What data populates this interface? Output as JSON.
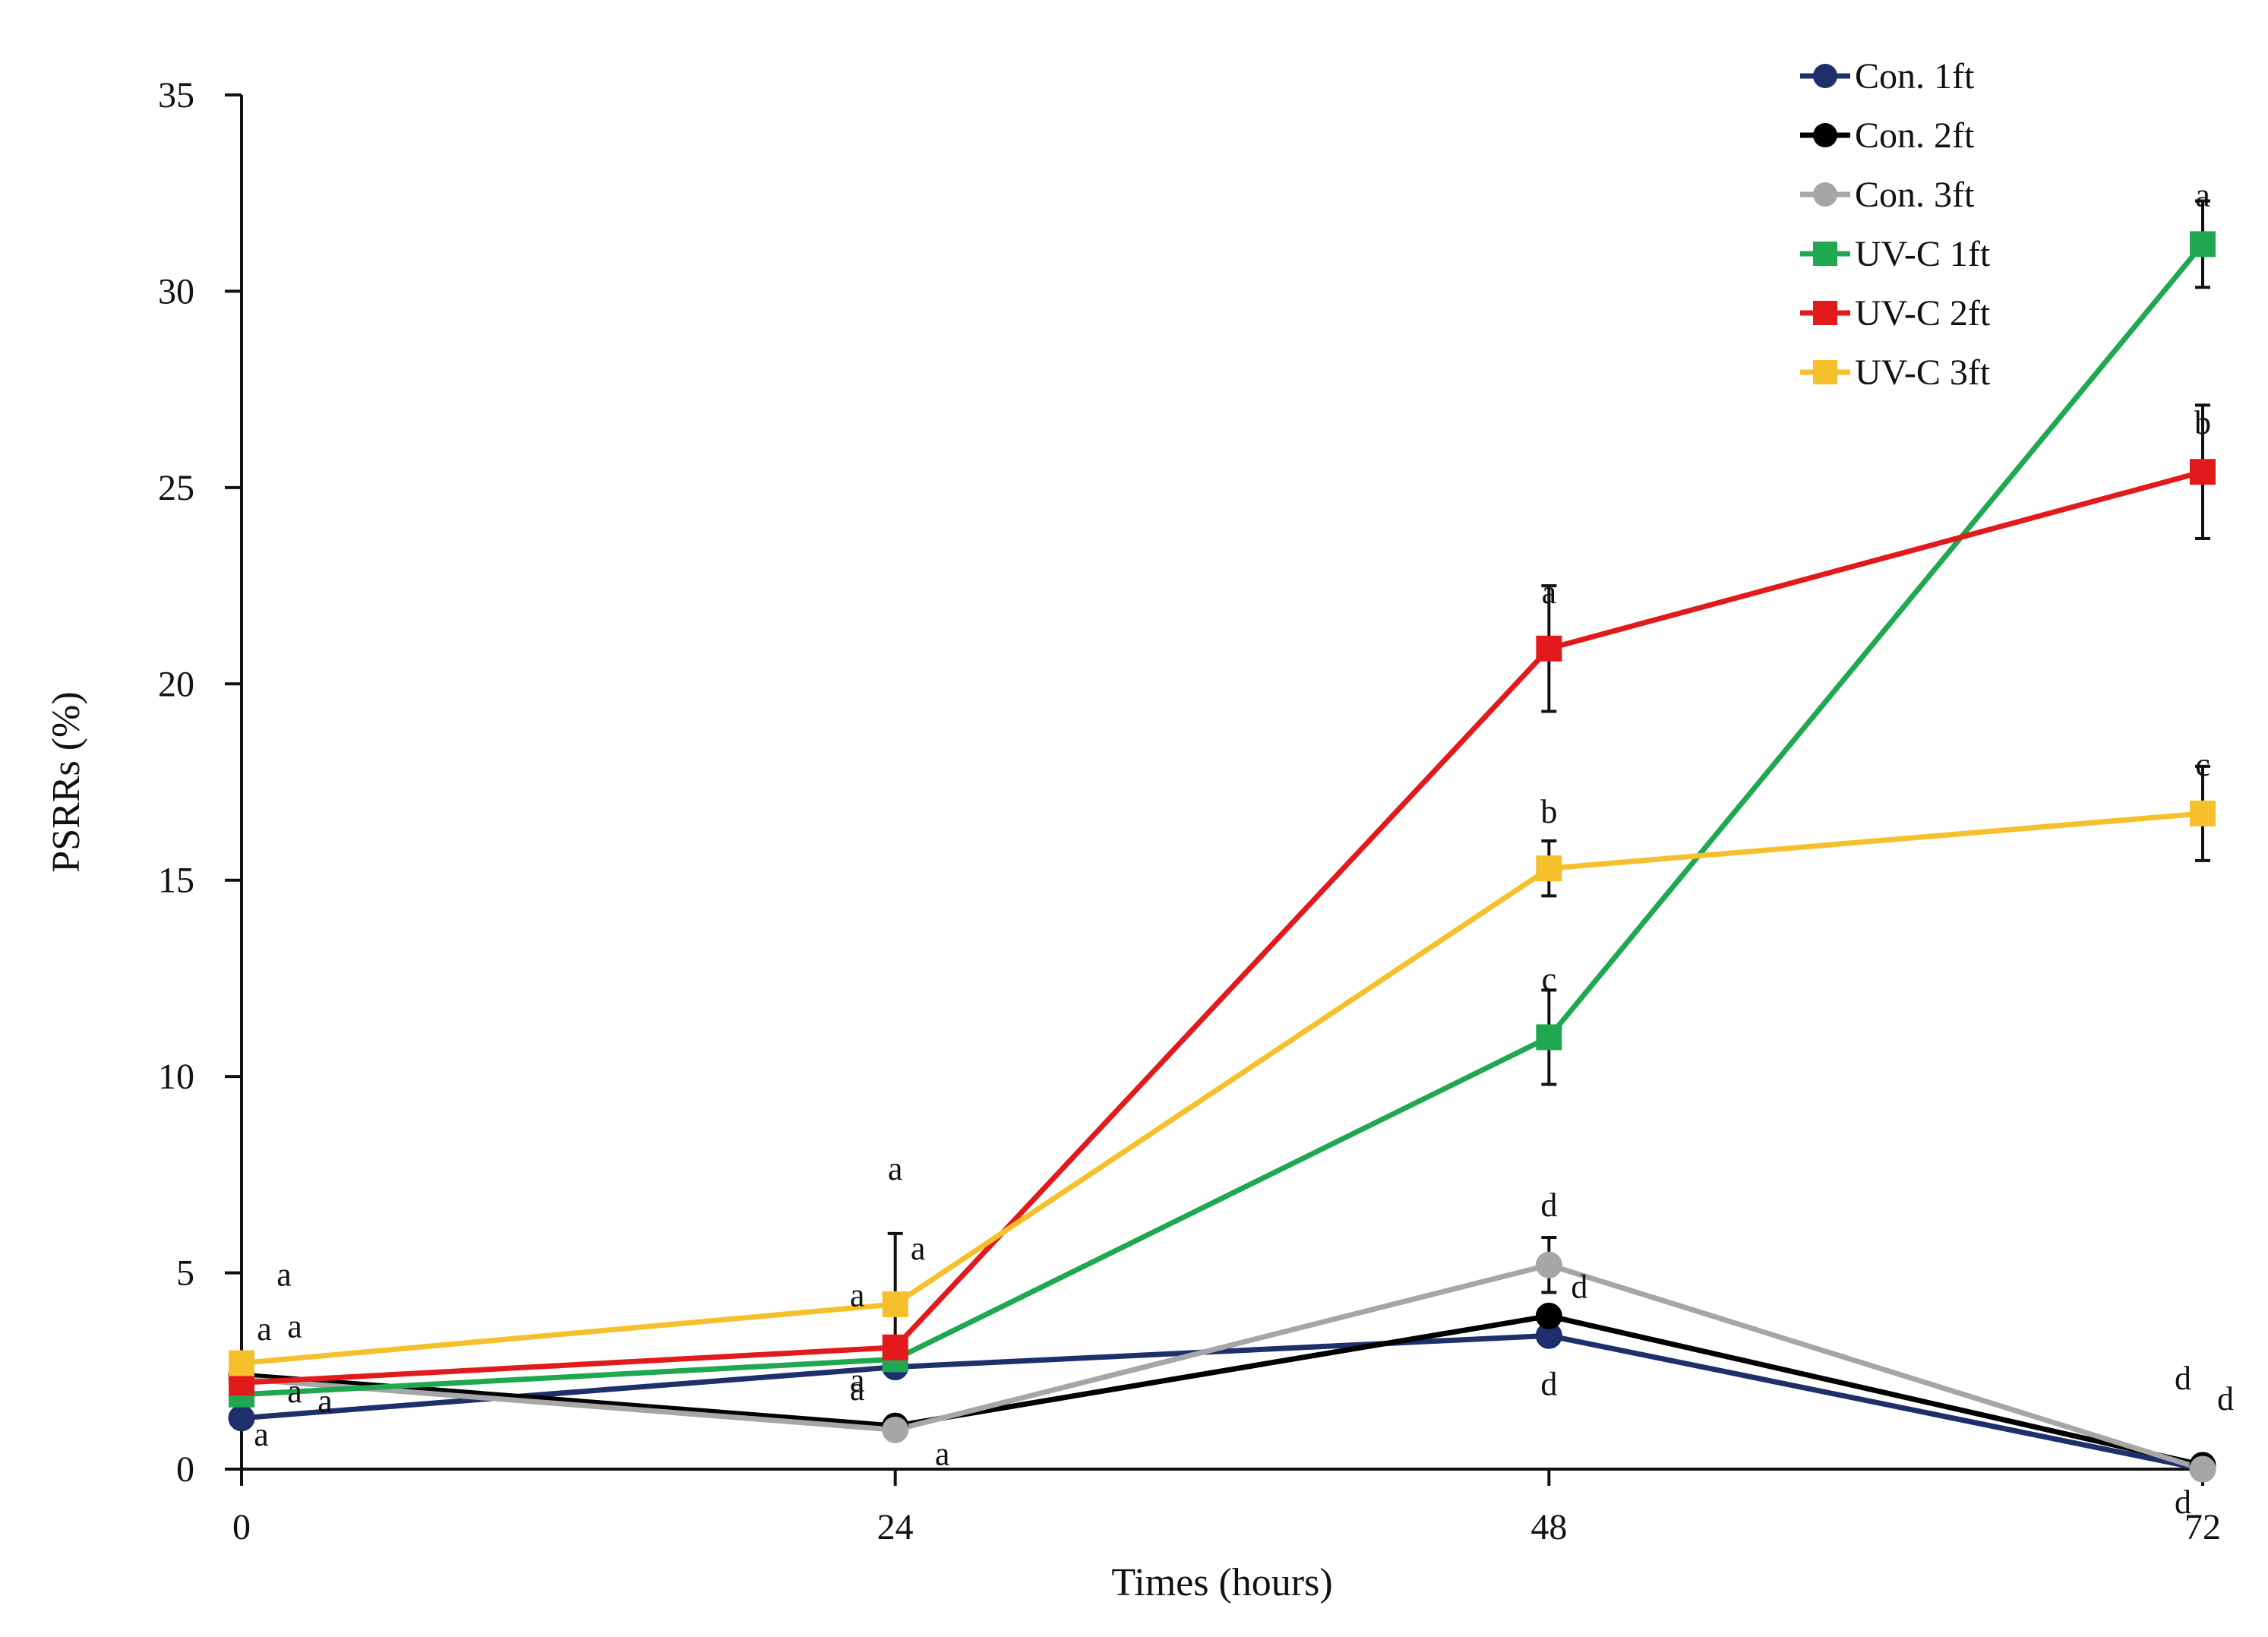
{
  "chart_data": {
    "type": "line",
    "title": "",
    "xlabel": "Times (hours)",
    "ylabel": "PSRRs (%)",
    "x": [
      0,
      24,
      48,
      72
    ],
    "x_tick_labels": [
      "0",
      "24",
      "48",
      "72"
    ],
    "xlim": [
      0,
      72
    ],
    "ylim": [
      0,
      35
    ],
    "y_ticks": [
      0,
      5,
      10,
      15,
      20,
      25,
      30,
      35
    ],
    "y_tick_labels": [
      "0",
      "5",
      "10",
      "15",
      "20",
      "25",
      "30",
      "35"
    ],
    "grid": false,
    "legend_position": "top-right",
    "series": [
      {
        "name": "Con. 1ft",
        "color": "#1f2f6b",
        "marker": "circle",
        "values": [
          1.3,
          2.6,
          3.4,
          0.0
        ],
        "errors": [
          0,
          0,
          0,
          0
        ],
        "letters": [
          "a",
          "a",
          "d",
          "d"
        ]
      },
      {
        "name": "Con. 2ft",
        "color": "#000000",
        "marker": "circle",
        "values": [
          2.4,
          1.1,
          3.9,
          0.1
        ],
        "errors": [
          0,
          0,
          0,
          0
        ],
        "letters": [
          "a",
          "a",
          "d",
          "d"
        ]
      },
      {
        "name": "Con. 3ft",
        "color": "#a6a6a6",
        "marker": "circle",
        "values": [
          2.3,
          1.0,
          5.2,
          0.0
        ],
        "errors": [
          0,
          0,
          0.7,
          0
        ],
        "letters": [
          "a",
          "a",
          "d",
          "d"
        ]
      },
      {
        "name": "UV-C 1ft",
        "color": "#1fa84f",
        "marker": "square",
        "values": [
          1.9,
          2.8,
          11.0,
          31.2
        ],
        "errors": [
          0,
          0,
          1.2,
          1.1
        ],
        "letters": [
          "a",
          "a",
          "c",
          "a"
        ]
      },
      {
        "name": "UV-C 2ft",
        "color": "#e31a1c",
        "marker": "square",
        "values": [
          2.2,
          3.1,
          20.9,
          25.4
        ],
        "errors": [
          0,
          0,
          1.6,
          1.7
        ],
        "letters": [
          "a",
          "a",
          "a",
          "b"
        ]
      },
      {
        "name": "UV-C 3ft",
        "color": "#f5c02b",
        "marker": "square",
        "values": [
          2.7,
          4.2,
          15.3,
          16.7
        ],
        "errors": [
          0,
          1.8,
          0.7,
          1.2
        ],
        "letters": [
          "a",
          "a",
          "b",
          "c"
        ]
      }
    ]
  }
}
